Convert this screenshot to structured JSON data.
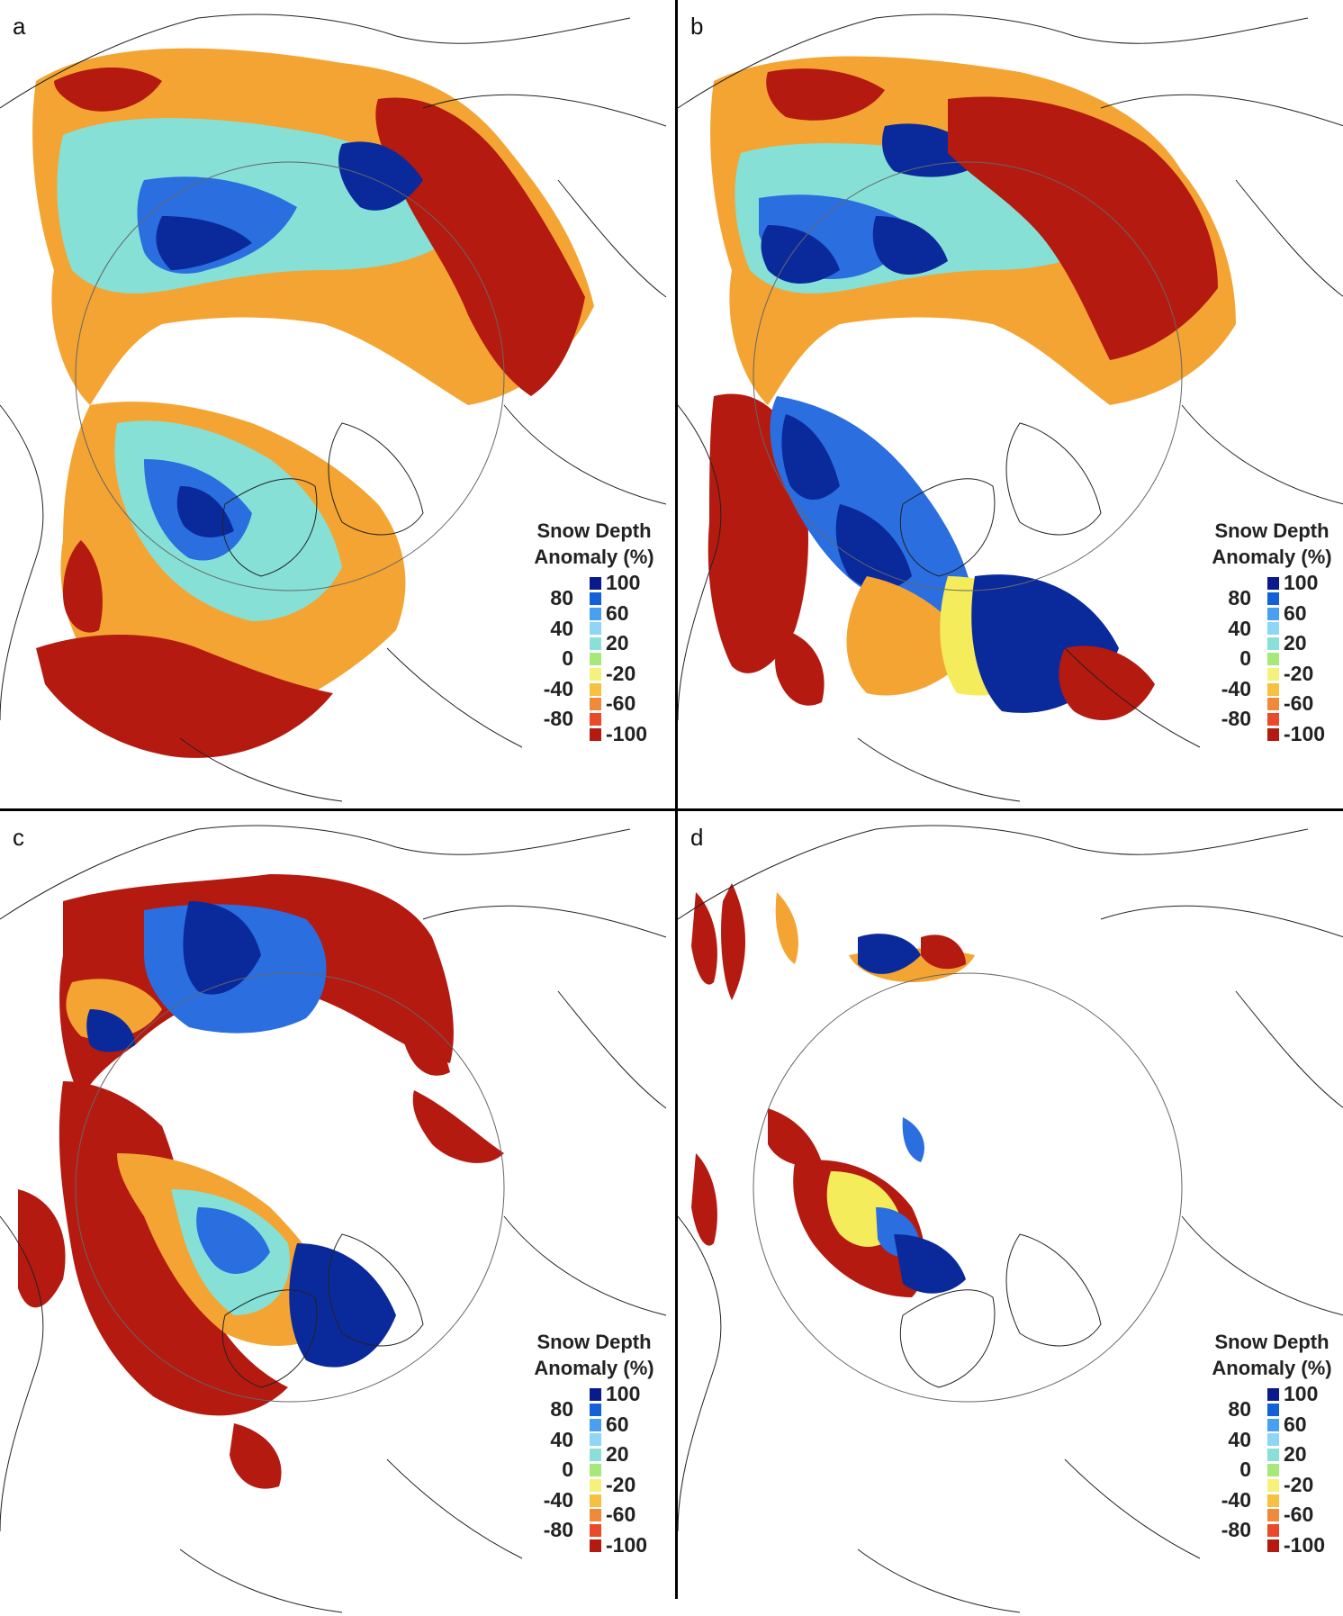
{
  "panels": [
    {
      "letter": "a"
    },
    {
      "letter": "b"
    },
    {
      "letter": "c"
    },
    {
      "letter": "d"
    }
  ],
  "legend": {
    "title_line1": "Snow Depth",
    "title_line2": "Anomaly (%)",
    "right_ticks": [
      "100",
      "60",
      "20",
      "-20",
      "-60",
      "-100"
    ],
    "left_ticks": [
      "80",
      "40",
      "0",
      "-40",
      "-80"
    ],
    "colors": [
      "#0a1a8c",
      "#1460d8",
      "#4aa0f0",
      "#8fd6f6",
      "#8ae0d8",
      "#a6e87a",
      "#f4f27a",
      "#f6c040",
      "#f08a3a",
      "#e84a2a",
      "#b41a10"
    ]
  },
  "colors": {
    "deep_blue": "#0a2a9c",
    "blue": "#2a6ee0",
    "light_blue": "#7cc8f0",
    "cyan": "#86e0d6",
    "green": "#98e070",
    "yellow": "#f4ec5a",
    "orange": "#f4a432",
    "red_orange": "#ec5a28",
    "dark_red": "#b41a10",
    "coastline": "#222222",
    "arctic_circle": "#666666"
  }
}
